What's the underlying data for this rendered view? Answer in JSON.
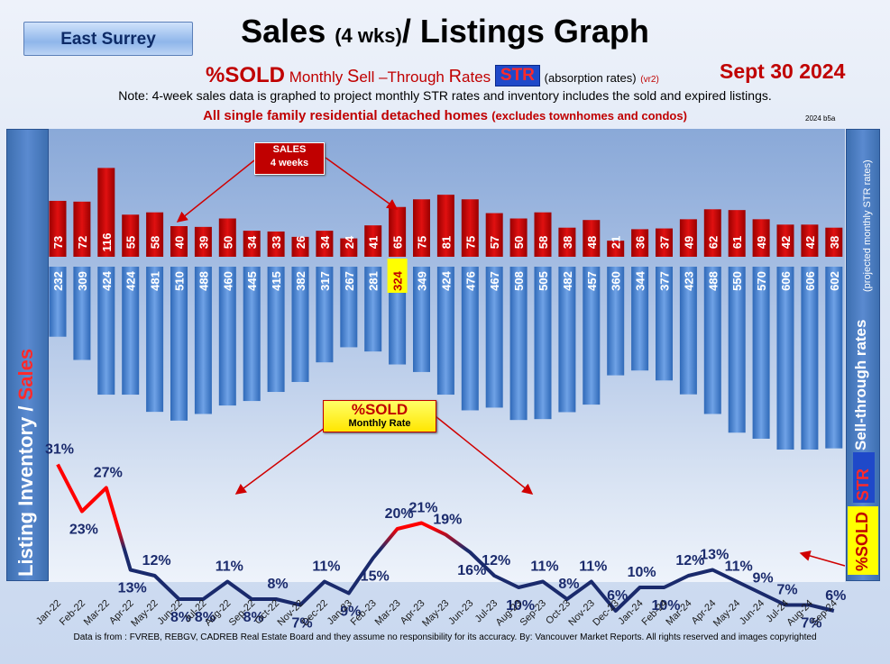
{
  "header": {
    "region": "East Surrey",
    "title_main": "Sales ",
    "title_small": "(4 wks)",
    "title_end": "/ Listings Graph",
    "sold_word": "%SOLD",
    "monthly_word": " Monthly ",
    "s_cap": "S",
    "ell": "ell ",
    "dash_t": "–T",
    "hrough": "hrough ",
    "r_cap": "R",
    "ates": "ates ",
    "str_label": "STR",
    "absorption": "(absorption rates)",
    "vr2": "(vr2)",
    "date": "Sept  30  2024",
    "note": "Note: 4-week sales data is graphed to project monthly STR rates and inventory includes the sold and expired listings.",
    "note2_main": "All single family residential detached homes ",
    "note2_small": "(excludes townhomes and condos)",
    "version": "2024 b5a"
  },
  "side": {
    "left_label_a": "Listing Inventory / ",
    "left_label_b": "Sales",
    "right_label_main": "Sell-through rates",
    "right_label_small": "(projected monthly STR rates)",
    "str_label": "STR",
    "sold_label": "%SOLD"
  },
  "callouts": {
    "sales_line1": "SALES",
    "sales_line2": "4  weeks",
    "sold_line1": "%SOLD",
    "sold_line2": "Monthly Rate"
  },
  "footer": "Data is from : FVREB, REBGV, CADREB Real Estate Board and they assume no responsibility for its accuracy. By: Vancouver Market Reports. All rights reserved and  images copyrighted",
  "colors": {
    "sales_bar": "#c00000",
    "inventory_bar": "#4a86d4",
    "sold_line_high": "#ff0000",
    "sold_line_low": "#1a2a6c",
    "label_text": "#1a2a6c"
  },
  "chart_data": {
    "type": "bar",
    "categories": [
      "Jan-22",
      "Feb-22",
      "Mar-22",
      "Apr-22",
      "May-22",
      "Jun-22",
      "Jul-22",
      "Aug-22",
      "Sep-22",
      "Oct-22",
      "Nov-22",
      "Dec-22",
      "Jan-23",
      "Feb-23",
      "Mar-23",
      "Apr-23",
      "May-23",
      "Jun-23",
      "Jul-23",
      "Aug-23",
      "Sep-23",
      "Oct-23",
      "Nov-23",
      "Dec-23",
      "Jan-24",
      "Feb-24",
      "Mar-24",
      "Apr-24",
      "May-24",
      "Jun-24",
      "Jul-24",
      "Aug-24",
      "Sep-24"
    ],
    "series": [
      {
        "name": "SALES 4 weeks",
        "values": [
          73,
          72,
          116,
          55,
          58,
          40,
          39,
          50,
          34,
          33,
          26,
          34,
          24,
          41,
          65,
          75,
          81,
          75,
          57,
          50,
          58,
          38,
          48,
          21,
          36,
          37,
          49,
          62,
          61,
          49,
          42,
          42,
          38
        ]
      },
      {
        "name": "Listing Inventory",
        "values": [
          232,
          309,
          424,
          424,
          481,
          510,
          488,
          460,
          445,
          415,
          382,
          317,
          267,
          281,
          324,
          349,
          424,
          476,
          467,
          508,
          505,
          482,
          457,
          360,
          344,
          377,
          423,
          488,
          550,
          570,
          606,
          606,
          602
        ]
      },
      {
        "name": "%SOLD Monthly Rate",
        "values": [
          31,
          23,
          27,
          13,
          12,
          8,
          8,
          11,
          8,
          8,
          7,
          11,
          9,
          15,
          20,
          21,
          19,
          16,
          12,
          10,
          11,
          8,
          11,
          6,
          10,
          10,
          12,
          13,
          11,
          9,
          7,
          7,
          6
        ]
      }
    ]
  }
}
